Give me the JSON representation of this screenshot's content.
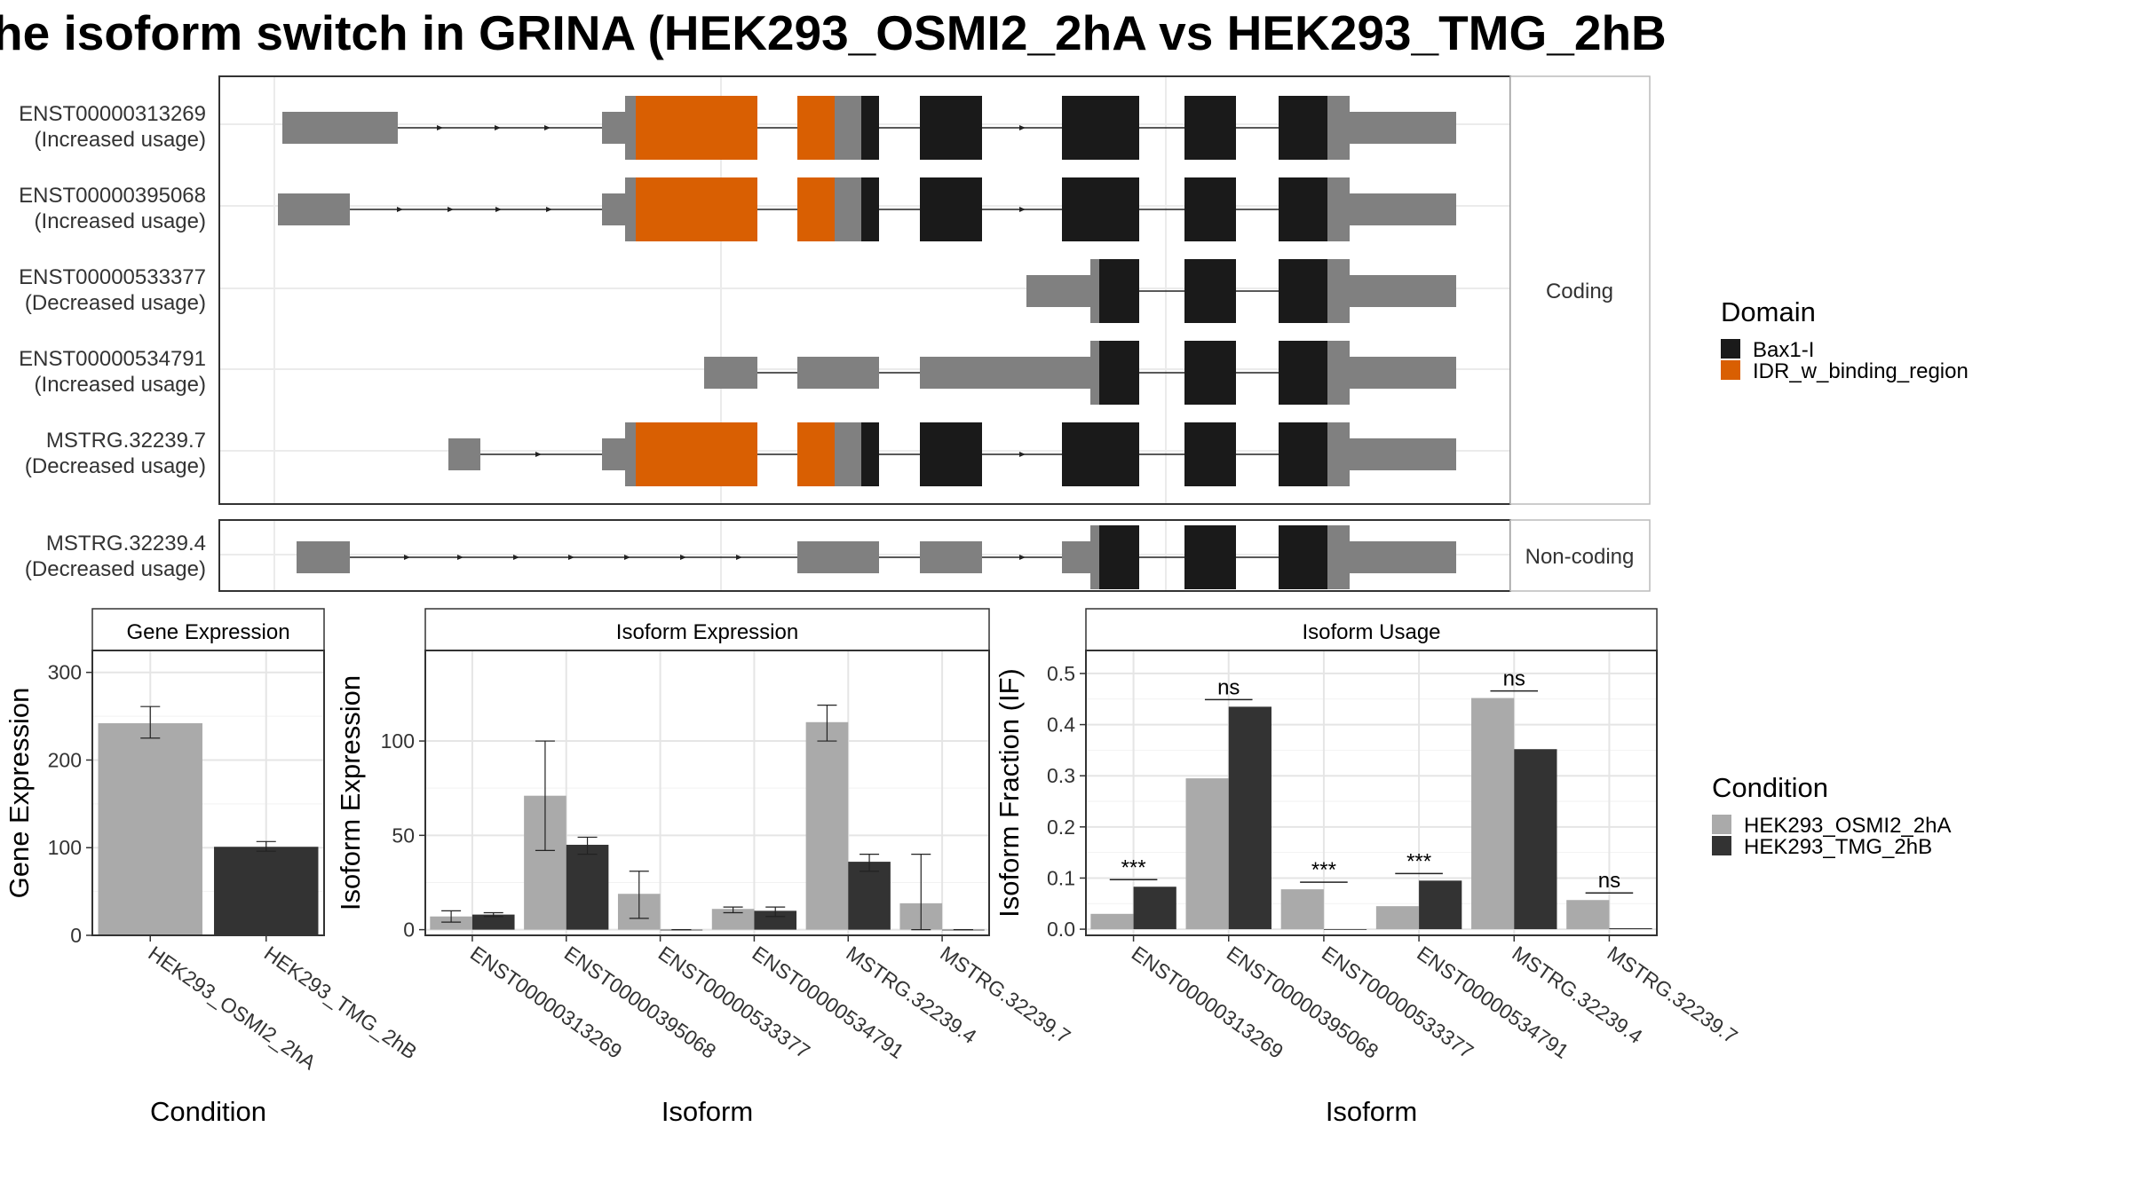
{
  "title": "he isoform switch in GRINA (HEK293_OSMI2_2hA vs HEK293_TMG_2hB",
  "colors": {
    "utr": "#808080",
    "bax1i": "#1a1a1a",
    "idr": "#d95f02",
    "cond_a": "#aaaaaa",
    "cond_b": "#333333"
  },
  "structure": {
    "coding_label": "Coding",
    "noncoding_label": "Non-coding",
    "isoforms": [
      {
        "id": "ENST00000313269",
        "usage": "(Increased usage)",
        "group": "coding"
      },
      {
        "id": "ENST00000395068",
        "usage": "(Increased usage)",
        "group": "coding"
      },
      {
        "id": "ENST00000533377",
        "usage": "(Decreased usage)",
        "group": "coding"
      },
      {
        "id": "ENST00000534791",
        "usage": "(Increased usage)",
        "group": "coding"
      },
      {
        "id": "MSTRG.32239.7",
        "usage": "(Decreased usage)",
        "group": "coding"
      },
      {
        "id": "MSTRG.32239.4",
        "usage": "(Decreased usage)",
        "group": "noncoding"
      }
    ]
  },
  "legend_domain": {
    "title": "Domain",
    "items": [
      {
        "label": "Bax1-I",
        "color": "#1a1a1a"
      },
      {
        "label": "IDR_w_binding_region",
        "color": "#d95f02"
      }
    ]
  },
  "legend_condition": {
    "title": "Condition",
    "items": [
      {
        "label": "HEK293_OSMI2_2hA",
        "color": "#aaaaaa"
      },
      {
        "label": "HEK293_TMG_2hB",
        "color": "#333333"
      }
    ]
  },
  "chart_data": [
    {
      "type": "bar",
      "title": "Gene Expression",
      "xlabel": "Condition",
      "ylabel": "Gene Expression",
      "categories": [
        "HEK293_OSMI2_2hA",
        "HEK293_TMG_2hB"
      ],
      "values": [
        242,
        101
      ],
      "errors": [
        [
          225,
          261
        ],
        [
          96,
          107
        ]
      ],
      "yticks": [
        0,
        100,
        200,
        300
      ],
      "ylim": [
        0,
        325
      ],
      "grid": true
    },
    {
      "type": "bar",
      "title": "Isoform Expression",
      "xlabel": "Isoform",
      "ylabel": "Isoform Expression",
      "categories": [
        "ENST00000313269",
        "ENST00000395068",
        "ENST00000533377",
        "ENST00000534791",
        "MSTRG.32239.4",
        "MSTRG.32239.7"
      ],
      "series": [
        {
          "name": "HEK293_OSMI2_2hA",
          "values": [
            7,
            71,
            19,
            11,
            110,
            14
          ],
          "errors": [
            [
              4,
              10
            ],
            [
              42,
              100
            ],
            [
              6,
              31
            ],
            [
              9,
              12
            ],
            [
              100,
              119
            ],
            [
              0,
              40
            ]
          ]
        },
        {
          "name": "HEK293_TMG_2hB",
          "values": [
            8,
            45,
            0,
            10,
            36,
            0
          ],
          "errors": [
            [
              7,
              9
            ],
            [
              40,
              49
            ],
            [
              0,
              0
            ],
            [
              7,
              12
            ],
            [
              31,
              40
            ],
            [
              0,
              0
            ]
          ]
        }
      ],
      "yticks": [
        0,
        50,
        100
      ],
      "ylim": [
        -3,
        148
      ],
      "grid": true
    },
    {
      "type": "bar",
      "title": "Isoform Usage",
      "xlabel": "Isoform",
      "ylabel": "Isoform Fraction (IF)",
      "categories": [
        "ENST00000313269",
        "ENST00000395068",
        "ENST00000533377",
        "ENST00000534791",
        "MSTRG.32239.4",
        "MSTRG.32239.7"
      ],
      "series": [
        {
          "name": "HEK293_OSMI2_2hA",
          "values": [
            0.03,
            0.295,
            0.078,
            0.045,
            0.452,
            0.057
          ]
        },
        {
          "name": "HEK293_TMG_2hB",
          "values": [
            0.083,
            0.435,
            0.0,
            0.095,
            0.352,
            0.002
          ]
        }
      ],
      "significance": [
        "***",
        "ns",
        "***",
        "***",
        "ns",
        "ns"
      ],
      "yticks": [
        0.0,
        0.1,
        0.2,
        0.3,
        0.4,
        0.5
      ],
      "ylim": [
        -0.012,
        0.545
      ],
      "grid": true
    }
  ]
}
